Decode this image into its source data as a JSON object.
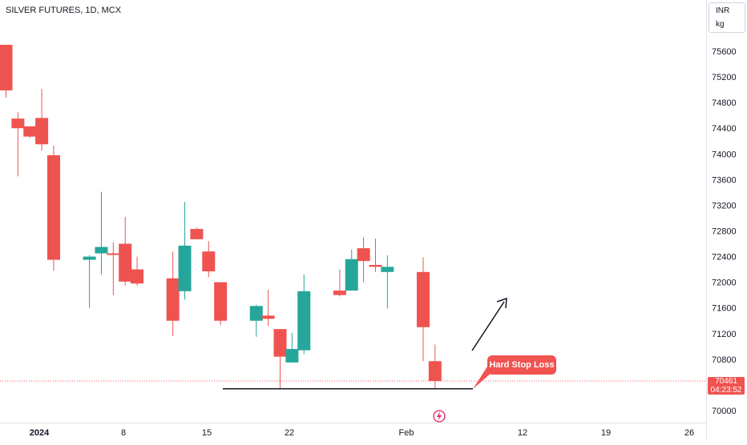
{
  "header": {
    "title": "SILVER FUTURES, 1D, MCX"
  },
  "currency": {
    "line1": "INR",
    "line2": "kg"
  },
  "last_price": {
    "value": "70461",
    "countdown": "04:23:52",
    "numeric": 70461
  },
  "annotation": {
    "text": "Hard Stop Loss",
    "level": 70340
  },
  "colors": {
    "up": "#26a69a",
    "down": "#ef5350",
    "line": "#131722",
    "badge": "#f05350"
  },
  "chart_data": {
    "type": "candlestick",
    "title": "SILVER FUTURES, 1D, MCX",
    "ylim": [
      69880,
      75970
    ],
    "y_ticks": [
      70000,
      70400,
      70800,
      71200,
      71600,
      72000,
      72400,
      72800,
      73200,
      73600,
      74000,
      74400,
      74800,
      75200,
      75600
    ],
    "x_tick_labels": [
      "2024",
      "8",
      "15",
      "22",
      "Feb",
      "12",
      "19",
      "26"
    ],
    "candles": [
      {
        "o": 75700,
        "h": 75700,
        "l": 74880,
        "c": 74990
      },
      {
        "o": 74550,
        "h": 74650,
        "l": 73650,
        "c": 74400
      },
      {
        "o": 74430,
        "h": 74430,
        "l": 74250,
        "c": 74270
      },
      {
        "o": 74560,
        "h": 75010,
        "l": 74050,
        "c": 74150
      },
      {
        "o": 73980,
        "h": 74130,
        "l": 72180,
        "c": 72350
      },
      {
        "o": 72350,
        "h": 72420,
        "l": 71600,
        "c": 72400
      },
      {
        "o": 72450,
        "h": 73410,
        "l": 72120,
        "c": 72550
      },
      {
        "o": 72450,
        "h": 72620,
        "l": 71800,
        "c": 72440
      },
      {
        "o": 72600,
        "h": 73020,
        "l": 71950,
        "c": 72010
      },
      {
        "o": 72200,
        "h": 72400,
        "l": 71950,
        "c": 71980
      },
      {
        "o": 72060,
        "h": 72480,
        "l": 71160,
        "c": 71400
      },
      {
        "o": 71860,
        "h": 73250,
        "l": 71730,
        "c": 72570
      },
      {
        "o": 72830,
        "h": 72850,
        "l": 72670,
        "c": 72670
      },
      {
        "o": 72480,
        "h": 72640,
        "l": 72080,
        "c": 72170
      },
      {
        "o": 72000,
        "h": 72000,
        "l": 71330,
        "c": 71400
      },
      {
        "o": 71400,
        "h": 71650,
        "l": 71150,
        "c": 71630
      },
      {
        "o": 71480,
        "h": 71880,
        "l": 71320,
        "c": 71430
      },
      {
        "o": 71270,
        "h": 71270,
        "l": 70350,
        "c": 70840
      },
      {
        "o": 70750,
        "h": 71210,
        "l": 70750,
        "c": 70960
      },
      {
        "o": 70940,
        "h": 72120,
        "l": 70880,
        "c": 71860
      },
      {
        "o": 71870,
        "h": 72200,
        "l": 71780,
        "c": 71800
      },
      {
        "o": 71870,
        "h": 72510,
        "l": 71870,
        "c": 72360
      },
      {
        "o": 72530,
        "h": 72700,
        "l": 72000,
        "c": 72330
      },
      {
        "o": 72270,
        "h": 72680,
        "l": 72160,
        "c": 72240
      },
      {
        "o": 72160,
        "h": 72420,
        "l": 71590,
        "c": 72240
      },
      {
        "o": 72160,
        "h": 72390,
        "l": 70770,
        "c": 71300
      },
      {
        "o": 70770,
        "h": 71030,
        "l": 70330,
        "c": 70461
      }
    ],
    "horizontal_line": {
      "value": 70340,
      "label": "Hard Stop Loss"
    },
    "current_price_line": 70461,
    "arrow": {
      "direction": "up"
    }
  }
}
